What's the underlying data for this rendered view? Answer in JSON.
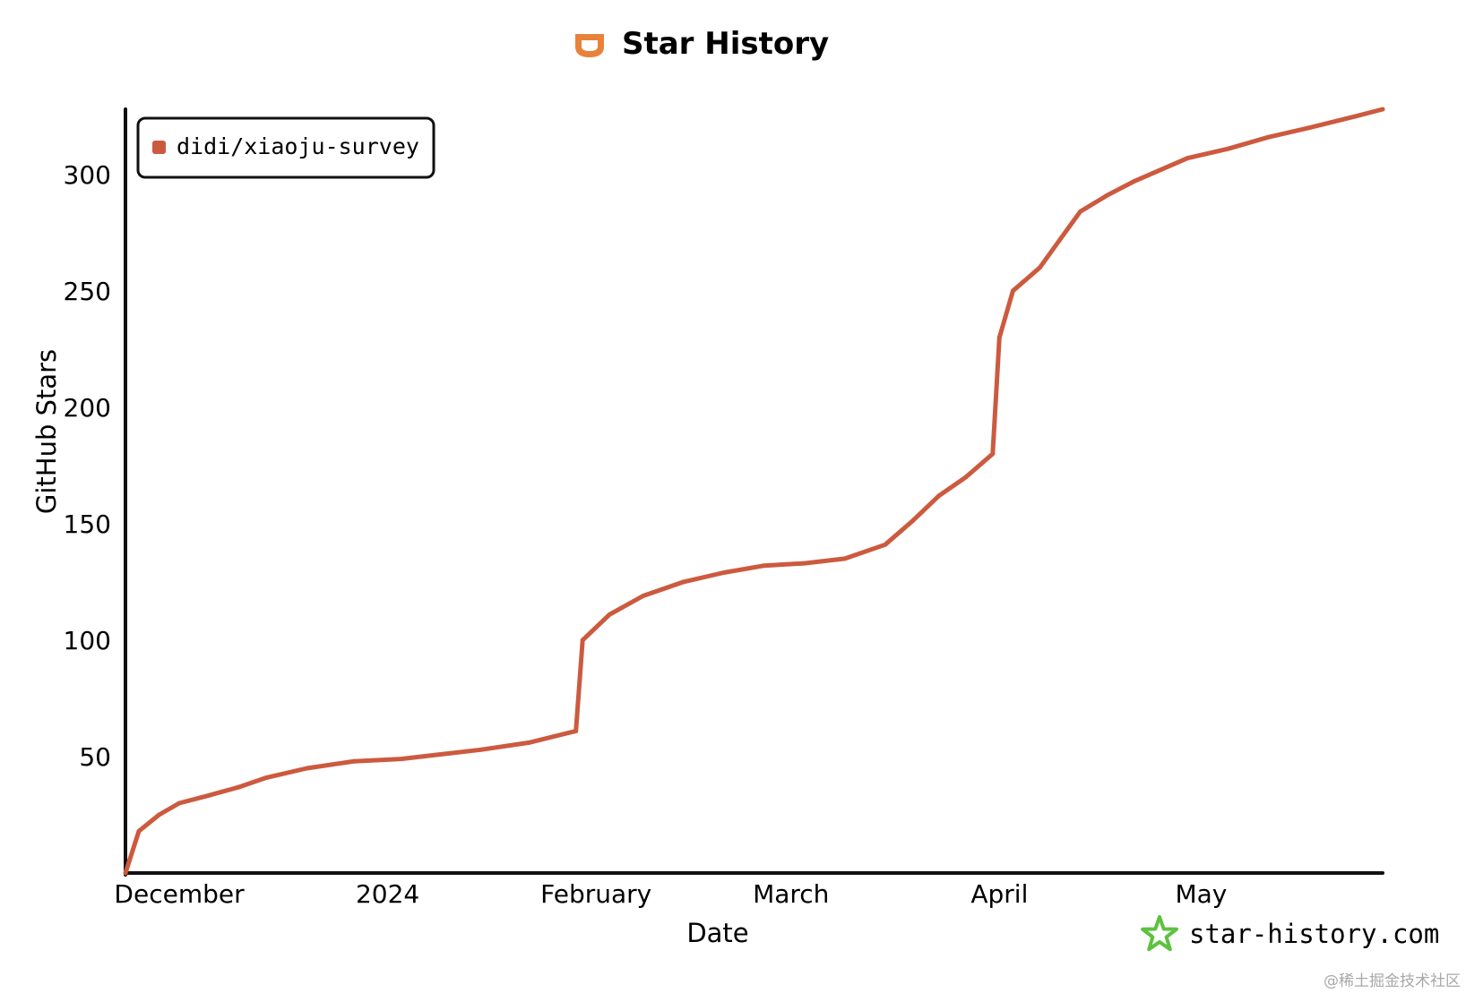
{
  "chart_data": {
    "type": "line",
    "title": "Star History",
    "xlabel": "Date",
    "ylabel": "GitHub Stars",
    "x_ticks": [
      "December",
      "2024",
      "February",
      "March",
      "April",
      "May"
    ],
    "x_tick_dates": [
      "2023-12-01",
      "2024-01-01",
      "2024-02-01",
      "2024-03-01",
      "2024-04-01",
      "2024-05-01"
    ],
    "xlim": [
      "2023-11-23",
      "2024-05-28"
    ],
    "y_ticks": [
      50,
      100,
      150,
      200,
      250,
      300
    ],
    "ylim": [
      0,
      328
    ],
    "grid": false,
    "legend_position": "top-left",
    "series": [
      {
        "name": "didi/xiaoju-survey",
        "color": "#cc5a3f",
        "points": [
          [
            "2023-11-23",
            0
          ],
          [
            "2023-11-25",
            18
          ],
          [
            "2023-11-28",
            25
          ],
          [
            "2023-12-01",
            30
          ],
          [
            "2023-12-05",
            33
          ],
          [
            "2023-12-10",
            37
          ],
          [
            "2023-12-14",
            41
          ],
          [
            "2023-12-20",
            45
          ],
          [
            "2023-12-27",
            48
          ],
          [
            "2024-01-03",
            49
          ],
          [
            "2024-01-09",
            51
          ],
          [
            "2024-01-15",
            53
          ],
          [
            "2024-01-22",
            56
          ],
          [
            "2024-01-29",
            61
          ],
          [
            "2024-01-30",
            100
          ],
          [
            "2024-02-03",
            111
          ],
          [
            "2024-02-08",
            119
          ],
          [
            "2024-02-14",
            125
          ],
          [
            "2024-02-20",
            129
          ],
          [
            "2024-02-26",
            132
          ],
          [
            "2024-03-03",
            133
          ],
          [
            "2024-03-09",
            135
          ],
          [
            "2024-03-15",
            141
          ],
          [
            "2024-03-19",
            151
          ],
          [
            "2024-03-23",
            162
          ],
          [
            "2024-03-27",
            170
          ],
          [
            "2024-03-31",
            180
          ],
          [
            "2024-04-01",
            230
          ],
          [
            "2024-04-03",
            250
          ],
          [
            "2024-04-07",
            260
          ],
          [
            "2024-04-10",
            272
          ],
          [
            "2024-04-13",
            284
          ],
          [
            "2024-04-17",
            291
          ],
          [
            "2024-04-21",
            297
          ],
          [
            "2024-04-25",
            302
          ],
          [
            "2024-04-29",
            307
          ],
          [
            "2024-05-05",
            311
          ],
          [
            "2024-05-11",
            316
          ],
          [
            "2024-05-17",
            320
          ],
          [
            "2024-05-24",
            325
          ],
          [
            "2024-05-28",
            328
          ]
        ]
      }
    ]
  },
  "watermark": "star-history.com",
  "footer": "@稀土掘金技术社区",
  "colors": {
    "title_icon": "#e8823a",
    "watermark_star": "#5cc23e",
    "axis": "#111111"
  }
}
